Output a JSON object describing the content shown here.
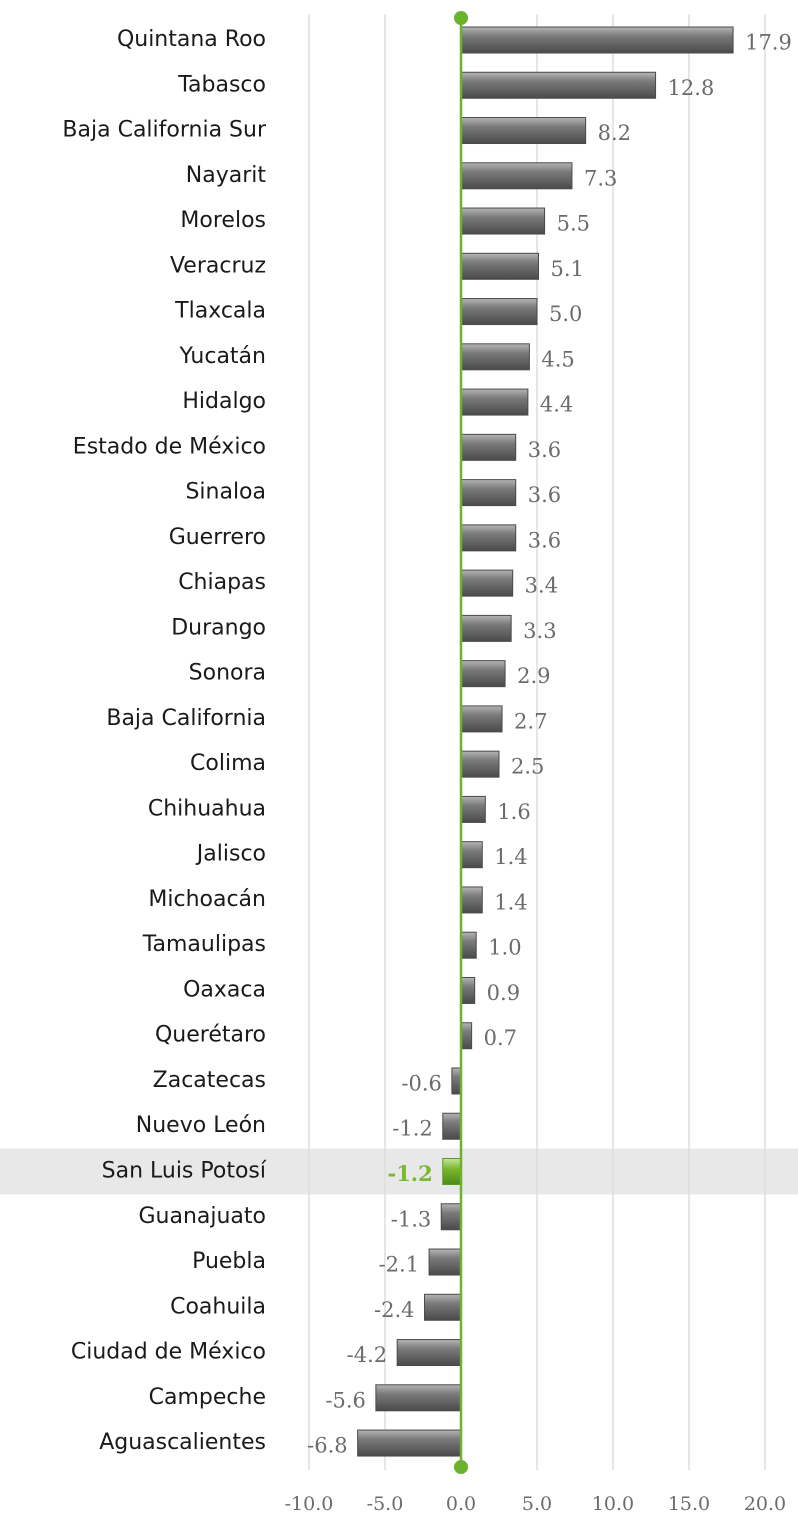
{
  "chart_data": {
    "type": "bar",
    "orientation": "horizontal",
    "categories": [
      "Quintana Roo",
      "Tabasco",
      "Baja California Sur",
      "Nayarit",
      "Morelos",
      "Veracruz",
      "Tlaxcala",
      "Yucatán",
      "Hidalgo",
      "Estado de México",
      "Sinaloa",
      "Guerrero",
      "Chiapas",
      "Durango",
      "Sonora",
      "Baja California",
      "Colima",
      "Chihuahua",
      "Jalisco",
      "Michoacán",
      "Tamaulipas",
      "Oaxaca",
      "Querétaro",
      "Zacatecas",
      "Nuevo León",
      "San Luis Potosí",
      "Guanajuato",
      "Puebla",
      "Coahuila",
      "Ciudad de México",
      "Campeche",
      "Aguascalientes"
    ],
    "values": [
      17.9,
      12.8,
      8.2,
      7.3,
      5.5,
      5.1,
      5.0,
      4.5,
      4.4,
      3.6,
      3.6,
      3.6,
      3.4,
      3.3,
      2.9,
      2.7,
      2.5,
      1.6,
      1.4,
      1.4,
      1.0,
      0.9,
      0.7,
      -0.6,
      -1.2,
      -1.2,
      -1.3,
      -2.1,
      -2.4,
      -4.2,
      -5.6,
      -6.8
    ],
    "value_labels": [
      "17.9",
      "12.8",
      "8.2",
      "7.3",
      "5.5",
      "5.1",
      "5.0",
      "4.5",
      "4.4",
      "3.6",
      "3.6",
      "3.6",
      "3.4",
      "3.3",
      "2.9",
      "2.7",
      "2.5",
      "1.6",
      "1.4",
      "1.4",
      "1.0",
      "0.9",
      "0.7",
      "-0.6",
      "-1.2",
      "-1.2",
      "-1.3",
      "-2.1",
      "-2.4",
      "-4.2",
      "-5.6",
      "-6.8"
    ],
    "color": "#6e6e6e",
    "highlight_index": 25,
    "highlight_color": "#7ab82e",
    "axis_color": "#6ab42d",
    "xlim": [
      -10,
      20
    ],
    "xticks": [
      {
        "value": -10,
        "label": "-10.0"
      },
      {
        "value": -5,
        "label": "-5.0"
      },
      {
        "value": 0,
        "label": "0.0"
      },
      {
        "value": 5,
        "label": "5.0"
      },
      {
        "value": 10,
        "label": "10.0"
      },
      {
        "value": 15,
        "label": "15.0"
      },
      {
        "value": 20,
        "label": "20.0"
      }
    ],
    "grid": true
  }
}
